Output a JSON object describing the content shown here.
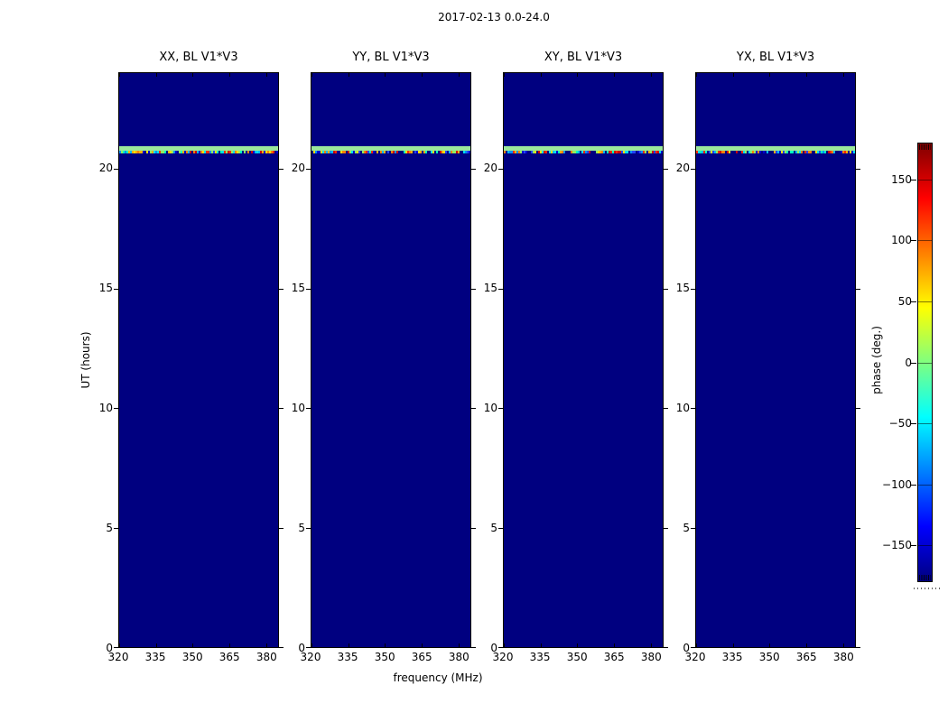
{
  "figure": {
    "title": "2017-02-13 0.0-24.0",
    "xlabel": "frequency (MHz)",
    "ylabel": "UT (hours)"
  },
  "panels": [
    {
      "title": "XX, BL V1*V3"
    },
    {
      "title": "YY, BL V1*V3"
    },
    {
      "title": "XY, BL V1*V3"
    },
    {
      "title": "YX, BL V1*V3"
    }
  ],
  "axes": {
    "x_tick_labels": [
      "320",
      "335",
      "350",
      "365",
      "380"
    ],
    "x_tick_values": [
      320,
      335,
      350,
      365,
      380
    ],
    "x_range": [
      320,
      385
    ],
    "y_tick_labels": [
      "0",
      "5",
      "10",
      "15",
      "20"
    ],
    "y_tick_values": [
      0,
      5,
      10,
      15,
      20
    ],
    "y_range": [
      0,
      24
    ]
  },
  "colorbar": {
    "label": "phase (deg.)",
    "tick_labels": [
      "150",
      "100",
      "50",
      "0",
      "−50",
      "−100",
      "−150"
    ],
    "tick_values": [
      150,
      100,
      50,
      0,
      -50,
      -100,
      -150
    ],
    "range": [
      -180,
      180
    ],
    "colormap": "jet",
    "min_color": "#000080",
    "max_color": "#800000"
  },
  "chart_data": {
    "type": "heatmap",
    "title": "2017-02-13 0.0-24.0",
    "xlabel": "frequency (MHz)",
    "ylabel": "UT (hours)",
    "x_range": [
      320,
      385
    ],
    "x_ticks": [
      320,
      335,
      350,
      365,
      380
    ],
    "y_range": [
      0,
      24
    ],
    "y_ticks": [
      0,
      5,
      10,
      15,
      20
    ],
    "panels": [
      "XX, BL V1*V3",
      "YY, BL V1*V3",
      "XY, BL V1*V3",
      "YX, BL V1*V3"
    ],
    "colorbar": {
      "label": "phase (deg.)",
      "range": [
        -180,
        180
      ],
      "ticks": [
        150,
        100,
        50,
        0,
        -50,
        -100,
        -150
      ],
      "colormap": "jet"
    },
    "values_summary": "All four polarization panels show a uniform background at the colormap floor (phase ~ -180 deg, dark navy). A single horizontal data stripe spans all frequencies at UT ~ 20.75-20.95 h in every panel with phase ~ +15 deg (light green), bordered below by a 1-px row of random phases spanning -180..+180 deg.",
    "stripe": {
      "ut_hours": [
        20.75,
        20.95
      ],
      "phase_deg": 15,
      "stripe_color": "#9ce89b",
      "noise_row_phase_deg": "random -180 to 180"
    }
  },
  "noise_palette": [
    "#00e0f0",
    "#0090ff",
    "#ff2800",
    "#ffe000",
    "#ff8000",
    "#000090",
    "#00ffc0",
    "#2244ff",
    "#90ee60",
    "#cc0000",
    "#0000d0",
    "#00b8ff",
    "#000080",
    "#ffb000",
    "#000080"
  ]
}
